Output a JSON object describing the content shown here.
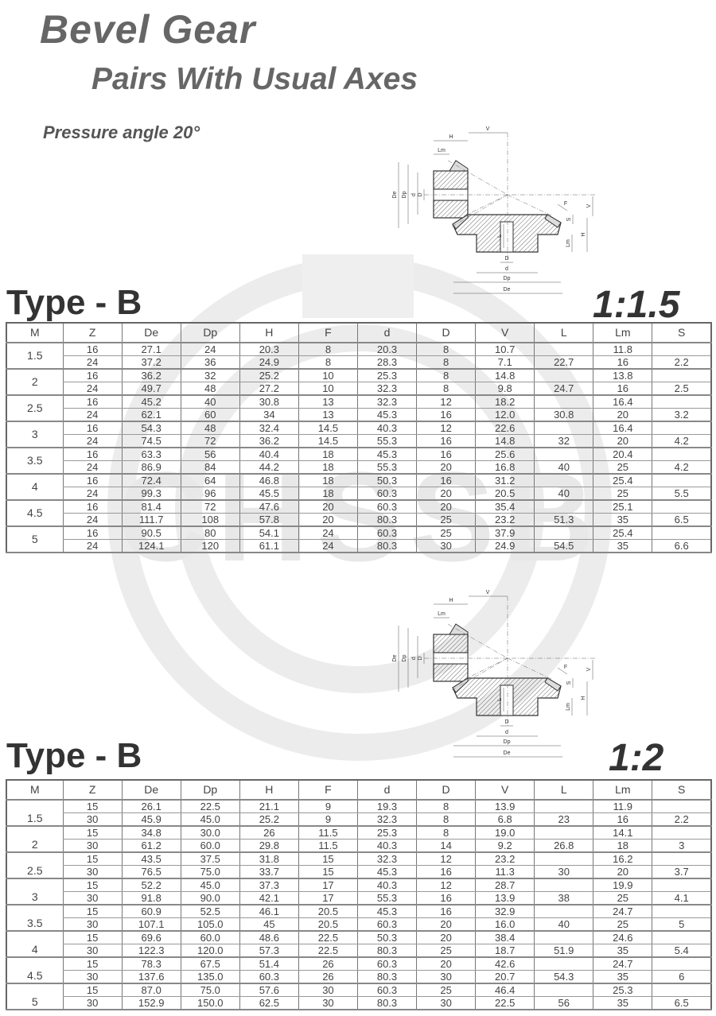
{
  "header": {
    "title": "Bevel Gear",
    "subtitle": "Pairs With Usual Axes",
    "pressure_angle": "Pressure angle 20°"
  },
  "watermark": "CHSSB",
  "diagram": {
    "labels": {
      "V": "V",
      "H": "H",
      "Lm": "Lm",
      "De": "De",
      "Dp": "Dp",
      "d": "d",
      "D": "D",
      "L": "L",
      "F": "F",
      "S": "S"
    }
  },
  "columns": [
    "M",
    "Z",
    "De",
    "Dp",
    "H",
    "F",
    "d",
    "D",
    "V",
    "L",
    "Lm",
    "S"
  ],
  "tables": [
    {
      "type_label": "Type - B",
      "ratio": "1:1.5",
      "groups": [
        {
          "M": "1.5",
          "rows": [
            [
              "16",
              "27.1",
              "24",
              "20.3",
              "8",
              "20.3",
              "8",
              "10.7",
              "",
              "11.8",
              ""
            ],
            [
              "24",
              "37.2",
              "36",
              "24.9",
              "8",
              "28.3",
              "8",
              "7.1",
              "22.7",
              "16",
              "2.2"
            ]
          ]
        },
        {
          "M": "2",
          "rows": [
            [
              "16",
              "36.2",
              "32",
              "25.2",
              "10",
              "25.3",
              "8",
              "14.8",
              "",
              "13.8",
              ""
            ],
            [
              "24",
              "49.7",
              "48",
              "27.2",
              "10",
              "32.3",
              "8",
              "9.8",
              "24.7",
              "16",
              "2.5"
            ]
          ]
        },
        {
          "M": "2.5",
          "rows": [
            [
              "16",
              "45.2",
              "40",
              "30.8",
              "13",
              "32.3",
              "12",
              "18.2",
              "",
              "16.4",
              ""
            ],
            [
              "24",
              "62.1",
              "60",
              "34",
              "13",
              "45.3",
              "16",
              "12.0",
              "30.8",
              "20",
              "3.2"
            ]
          ]
        },
        {
          "M": "3",
          "rows": [
            [
              "16",
              "54.3",
              "48",
              "32.4",
              "14.5",
              "40.3",
              "12",
              "22.6",
              "",
              "16.4",
              ""
            ],
            [
              "24",
              "74.5",
              "72",
              "36.2",
              "14.5",
              "55.3",
              "16",
              "14.8",
              "32",
              "20",
              "4.2"
            ]
          ]
        },
        {
          "M": "3.5",
          "rows": [
            [
              "16",
              "63.3",
              "56",
              "40.4",
              "18",
              "45.3",
              "16",
              "25.6",
              "",
              "20.4",
              ""
            ],
            [
              "24",
              "86.9",
              "84",
              "44.2",
              "18",
              "55.3",
              "20",
              "16.8",
              "40",
              "25",
              "4.2"
            ]
          ]
        },
        {
          "M": "4",
          "rows": [
            [
              "16",
              "72.4",
              "64",
              "46.8",
              "18",
              "50.3",
              "16",
              "31.2",
              "",
              "25.4",
              ""
            ],
            [
              "24",
              "99.3",
              "96",
              "45.5",
              "18",
              "60.3",
              "20",
              "20.5",
              "40",
              "25",
              "5.5"
            ]
          ]
        },
        {
          "M": "4.5",
          "rows": [
            [
              "16",
              "81.4",
              "72",
              "47.6",
              "20",
              "60.3",
              "20",
              "35.4",
              "",
              "25.1",
              ""
            ],
            [
              "24",
              "111.7",
              "108",
              "57.8",
              "20",
              "80.3",
              "25",
              "23.2",
              "51.3",
              "35",
              "6.5"
            ]
          ]
        },
        {
          "M": "5",
          "rows": [
            [
              "16",
              "90.5",
              "80",
              "54.1",
              "24",
              "60.3",
              "25",
              "37.9",
              "",
              "25.4",
              ""
            ],
            [
              "24",
              "124.1",
              "120",
              "61.1",
              "24",
              "80.3",
              "30",
              "24.9",
              "54.5",
              "35",
              "6.6"
            ]
          ]
        }
      ]
    },
    {
      "type_label": "Type - B",
      "ratio": "1:2",
      "groups": [
        {
          "M": "1.5",
          "rows": [
            [
              "15",
              "26.1",
              "22.5",
              "21.1",
              "9",
              "19.3",
              "8",
              "13.9",
              "",
              "11.9",
              ""
            ],
            [
              "30",
              "45.9",
              "45.0",
              "25.2",
              "9",
              "32.3",
              "8",
              "6.8",
              "23",
              "16",
              "2.2"
            ]
          ]
        },
        {
          "M": "2",
          "rows": [
            [
              "15",
              "34.8",
              "30.0",
              "26",
              "11.5",
              "25.3",
              "8",
              "19.0",
              "",
              "14.1",
              ""
            ],
            [
              "30",
              "61.2",
              "60.0",
              "29.8",
              "11.5",
              "40.3",
              "14",
              "9.2",
              "26.8",
              "18",
              "3"
            ]
          ]
        },
        {
          "M": "2.5",
          "rows": [
            [
              "15",
              "43.5",
              "37.5",
              "31.8",
              "15",
              "32.3",
              "12",
              "23.2",
              "",
              "16.2",
              ""
            ],
            [
              "30",
              "76.5",
              "75.0",
              "33.7",
              "15",
              "45.3",
              "16",
              "11.3",
              "30",
              "20",
              "3.7"
            ]
          ]
        },
        {
          "M": "3",
          "rows": [
            [
              "15",
              "52.2",
              "45.0",
              "37.3",
              "17",
              "40.3",
              "12",
              "28.7",
              "",
              "19.9",
              ""
            ],
            [
              "30",
              "91.8",
              "90.0",
              "42.1",
              "17",
              "55.3",
              "16",
              "13.9",
              "38",
              "25",
              "4.1"
            ]
          ]
        },
        {
          "M": "3.5",
          "rows": [
            [
              "15",
              "60.9",
              "52.5",
              "46.1",
              "20.5",
              "45.3",
              "16",
              "32.9",
              "",
              "24.7",
              ""
            ],
            [
              "30",
              "107.1",
              "105.0",
              "45",
              "20.5",
              "60.3",
              "20",
              "16.0",
              "40",
              "25",
              "5"
            ]
          ]
        },
        {
          "M": "4",
          "rows": [
            [
              "15",
              "69.6",
              "60.0",
              "48.6",
              "22.5",
              "50.3",
              "20",
              "38.4",
              "",
              "24.6",
              ""
            ],
            [
              "30",
              "122.3",
              "120.0",
              "57.3",
              "22.5",
              "80.3",
              "25",
              "18.7",
              "51.9",
              "35",
              "5.4"
            ]
          ]
        },
        {
          "M": "4.5",
          "rows": [
            [
              "15",
              "78.3",
              "67.5",
              "51.4",
              "26",
              "60.3",
              "20",
              "42.6",
              "",
              "24.7",
              ""
            ],
            [
              "30",
              "137.6",
              "135.0",
              "60.3",
              "26",
              "80.3",
              "30",
              "20.7",
              "54.3",
              "35",
              "6"
            ]
          ]
        },
        {
          "M": "5",
          "rows": [
            [
              "15",
              "87.0",
              "75.0",
              "57.6",
              "30",
              "60.3",
              "25",
              "46.4",
              "",
              "25.3",
              ""
            ],
            [
              "30",
              "152.9",
              "150.0",
              "62.5",
              "30",
              "80.3",
              "30",
              "22.5",
              "56",
              "35",
              "6.5"
            ]
          ]
        }
      ]
    }
  ]
}
